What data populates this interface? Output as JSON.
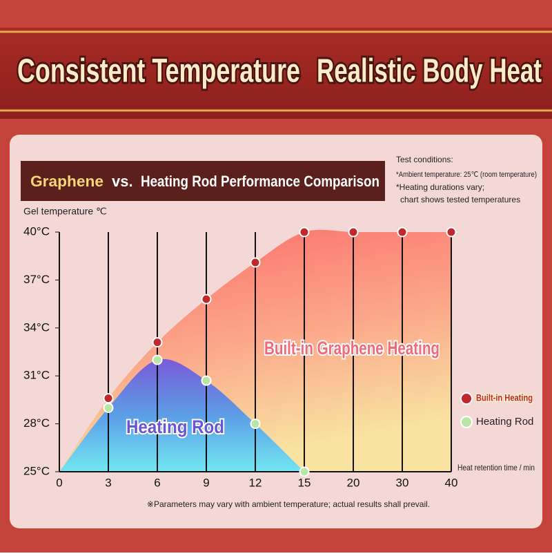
{
  "chart_data": {
    "type": "area",
    "titles": [
      "Consistent Temperature",
      "Realistic Body Heat"
    ],
    "subtitle": [
      "Graphene",
      "vs.",
      "Heating Rod Performance Comparison"
    ],
    "notes": [
      "Test conditions:",
      "*Ambient temperature: 25℃ (room temperature)",
      "*Heating durations vary;",
      "chart shows tested temperatures"
    ],
    "ylabel": "Gel temperature ℃",
    "xlabel": "Heat retention time / min",
    "categories": [
      "0",
      "3",
      "6",
      "9",
      "12",
      "15",
      "20",
      "30",
      "40"
    ],
    "series": [
      {
        "name": "Built-in Heating",
        "color": "#c0282d",
        "values": [
          25,
          29.6,
          33.1,
          35.8,
          38.1,
          40,
          40,
          40,
          40
        ]
      },
      {
        "name": "Heating Rod",
        "color": "#b8e6a8",
        "values": [
          25,
          29.0,
          32.0,
          30.7,
          28.0,
          25,
          null,
          null,
          null
        ]
      }
    ],
    "annotations": [
      "Built-in Graphene Heating",
      "Heating Rod"
    ],
    "ylim": [
      25,
      40
    ],
    "yticks": [
      {
        "value": 25,
        "label": "25°C"
      },
      {
        "value": 28,
        "label": "28°C"
      },
      {
        "value": 31,
        "label": "31°C"
      },
      {
        "value": 34,
        "label": "34°C"
      },
      {
        "value": 37,
        "label": "37°C"
      },
      {
        "value": 40,
        "label": "40°C"
      }
    ],
    "footnote": "※Parameters may vary with ambient temperature; actual results shall prevail."
  }
}
